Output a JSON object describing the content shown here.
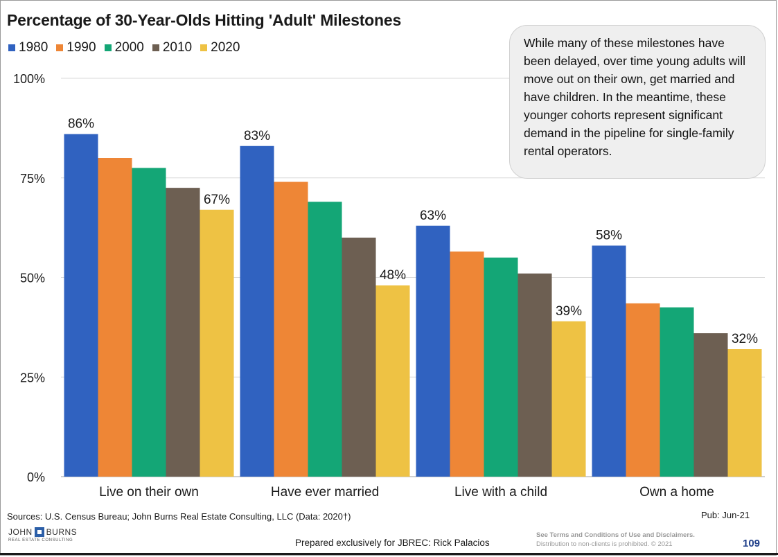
{
  "chart_data": {
    "type": "bar",
    "title": "Percentage of 30-Year-Olds Hitting 'Adult' Milestones",
    "categories": [
      "Live on their own",
      "Have ever married",
      "Live with a child",
      "Own a home"
    ],
    "series": [
      {
        "name": "1980",
        "color": "#3062c0",
        "values": [
          86,
          83,
          63,
          58
        ]
      },
      {
        "name": "1990",
        "color": "#ee8636",
        "values": [
          80,
          74,
          56.5,
          43.5
        ]
      },
      {
        "name": "2000",
        "color": "#14a676",
        "values": [
          77.5,
          69,
          55,
          42.5
        ]
      },
      {
        "name": "2010",
        "color": "#6d5f52",
        "values": [
          72.5,
          60,
          51,
          36
        ]
      },
      {
        "name": "2020",
        "color": "#eec244",
        "values": [
          67,
          48,
          39,
          32
        ]
      }
    ],
    "data_labels": [
      {
        "category_index": 0,
        "series_index": 0,
        "text": "86%"
      },
      {
        "category_index": 0,
        "series_index": 4,
        "text": "67%"
      },
      {
        "category_index": 1,
        "series_index": 0,
        "text": "83%"
      },
      {
        "category_index": 1,
        "series_index": 4,
        "text": "48%"
      },
      {
        "category_index": 2,
        "series_index": 0,
        "text": "63%"
      },
      {
        "category_index": 2,
        "series_index": 4,
        "text": "39%"
      },
      {
        "category_index": 3,
        "series_index": 0,
        "text": "58%"
      },
      {
        "category_index": 3,
        "series_index": 4,
        "text": "32%"
      }
    ],
    "ylim": [
      0,
      100
    ],
    "yticks": [
      0,
      25,
      50,
      75,
      100
    ],
    "ytick_labels": [
      "0%",
      "25%",
      "50%",
      "75%",
      "100%"
    ],
    "grid": true,
    "legend_position": "top-left",
    "annotation": "While many of these milestones have been delayed, over time young adults will move out on their own, get married and have children. In the meantime, these younger cohorts represent significant demand in the pipeline for single-family rental operators."
  },
  "footer": {
    "sources": "Sources: U.S. Census Bureau; John Burns Real Estate Consulting, LLC (Data: 2020†)",
    "pub": "Pub: Jun-21",
    "prepared": "Prepared exclusively for JBREC: Rick Palacios",
    "terms_line1": "See Terms and Conditions of Use and Disclaimers.",
    "terms_line2": "Distribution to non-clients is prohibited. © 2021",
    "page_number": "109"
  },
  "logo": {
    "name_left": "JOHN",
    "name_right": "BURNS",
    "tagline": "REAL ESTATE CONSULTING"
  },
  "colors": {
    "gridline": "#d9d9d9",
    "axis": "#bfbfbf",
    "callout_bg": "#efefef"
  }
}
